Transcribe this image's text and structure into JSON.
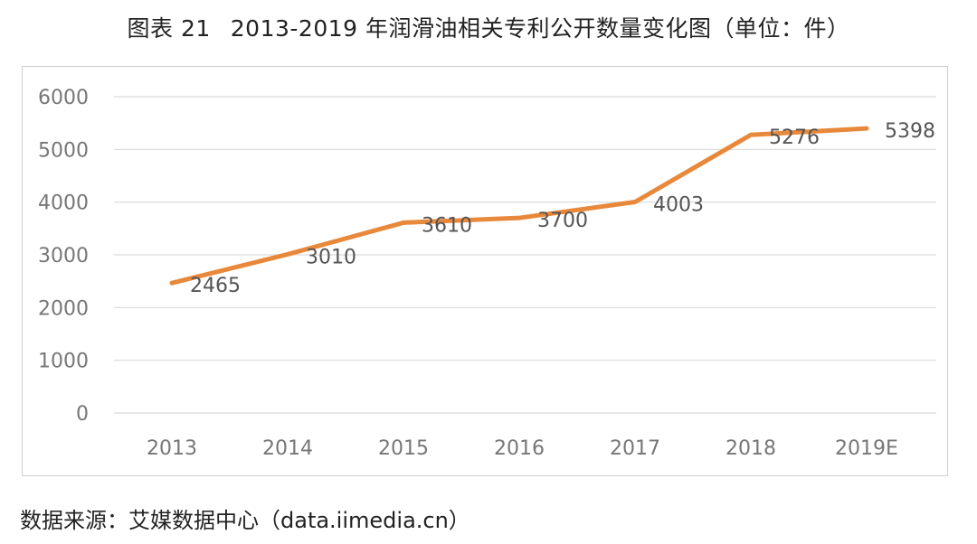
{
  "title": {
    "prefix": "图表 21",
    "text": "2013-2019 年润滑油相关专利公开数量变化图（单位：件）"
  },
  "source": "数据来源：艾媒数据中心（data.iimedia.cn）",
  "chart_data": {
    "type": "line",
    "categories": [
      "2013",
      "2014",
      "2015",
      "2016",
      "2017",
      "2018",
      "2019E"
    ],
    "values": [
      2465,
      3010,
      3610,
      3700,
      4003,
      5276,
      5398
    ],
    "data_labels": [
      "2465",
      "3010",
      "3610",
      "3700",
      "4003",
      "5276",
      "5398"
    ],
    "y_ticks": [
      0,
      1000,
      2000,
      3000,
      4000,
      5000,
      6000
    ],
    "ylim": [
      0,
      6000
    ],
    "grid": true,
    "legend": "none",
    "line_color": "#E8883A",
    "grid_color": "#d9d9d9"
  }
}
